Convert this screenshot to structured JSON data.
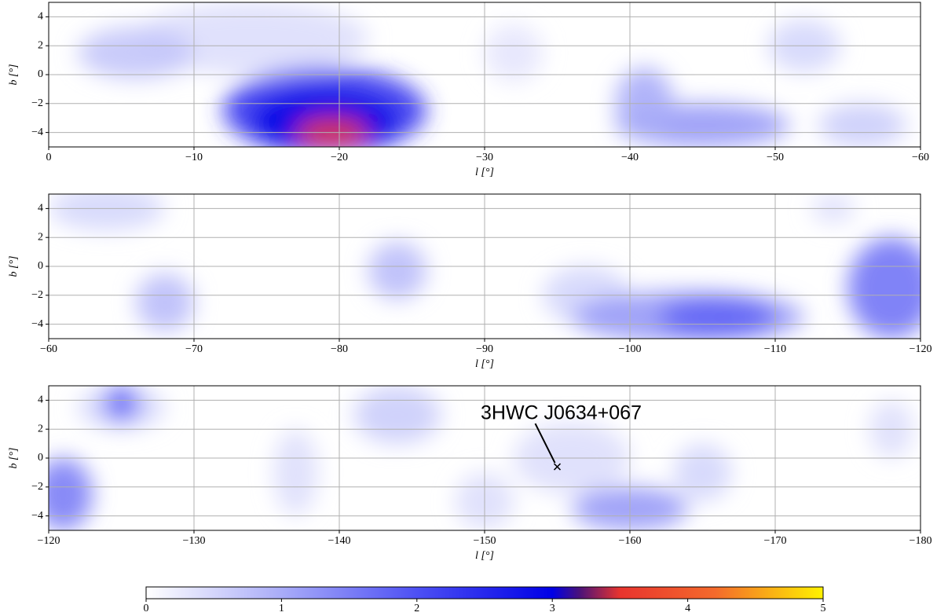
{
  "chart_data": [
    {
      "type": "heatmap",
      "xlabel": "l [°]",
      "ylabel": "b [°]",
      "xlim": [
        0,
        -60
      ],
      "ylim": [
        -5,
        5
      ],
      "xticks": [
        0,
        {
          "value": -10,
          "label": "−10"
        },
        {
          "value": -20,
          "label": "−20"
        },
        {
          "value": -30,
          "label": "−30"
        },
        {
          "value": -40,
          "label": "−40"
        },
        {
          "value": -50,
          "label": "−50"
        },
        {
          "value": -60,
          "label": "−60"
        }
      ],
      "yticks": [
        {
          "value": -4,
          "label": "−4"
        },
        {
          "value": -2,
          "label": "−2"
        },
        0,
        2,
        4
      ],
      "grid": true,
      "features": [
        {
          "l": -14,
          "b": 2.5,
          "sl": 8,
          "sb": 2.5,
          "value": 0.4
        },
        {
          "l": -6,
          "b": 1.5,
          "sl": 4,
          "sb": 1.8,
          "value": 0.7
        },
        {
          "l": -19,
          "b": -2.5,
          "sl": 7,
          "sb": 3,
          "value": 2.3
        },
        {
          "l": -19,
          "b": -3.2,
          "sl": 5,
          "sb": 2,
          "value": 3
        },
        {
          "l": -19.5,
          "b": -4,
          "sl": 2.5,
          "sb": 1,
          "value": 3.6
        },
        {
          "l": -32,
          "b": 1.5,
          "sl": 2,
          "sb": 2,
          "value": 0.3
        },
        {
          "l": -45,
          "b": -3.5,
          "sl": 6,
          "sb": 1.5,
          "value": 1.2
        },
        {
          "l": -41,
          "b": -2,
          "sl": 2,
          "sb": 2.5,
          "value": 1
        },
        {
          "l": -52,
          "b": 2,
          "sl": 2.5,
          "sb": 1.8,
          "value": 0.5
        },
        {
          "l": -56,
          "b": -3.5,
          "sl": 3,
          "sb": 1.5,
          "value": 0.6
        }
      ]
    },
    {
      "type": "heatmap",
      "xlabel": "l [°]",
      "ylabel": "b [°]",
      "xlim": [
        -60,
        -120
      ],
      "ylim": [
        -5,
        5
      ],
      "xticks": [
        {
          "value": -60,
          "label": "−60"
        },
        {
          "value": -70,
          "label": "−70"
        },
        {
          "value": -80,
          "label": "−80"
        },
        {
          "value": -90,
          "label": "−90"
        },
        {
          "value": -100,
          "label": "−100"
        },
        {
          "value": -110,
          "label": "−110"
        },
        {
          "value": -120,
          "label": "−120"
        }
      ],
      "yticks": [
        {
          "value": -4,
          "label": "−4"
        },
        {
          "value": -2,
          "label": "−2"
        },
        0,
        2,
        4
      ],
      "grid": true,
      "features": [
        {
          "l": -64,
          "b": 4,
          "sl": 4,
          "sb": 1.5,
          "value": 0.5
        },
        {
          "l": -68,
          "b": -2.5,
          "sl": 2,
          "sb": 2,
          "value": 0.8
        },
        {
          "l": -84,
          "b": -0.3,
          "sl": 2,
          "sb": 2,
          "value": 0.8
        },
        {
          "l": -97,
          "b": -2,
          "sl": 3,
          "sb": 2,
          "value": 0.5
        },
        {
          "l": -104,
          "b": -3.5,
          "sl": 8,
          "sb": 1.8,
          "value": 1.2
        },
        {
          "l": -106,
          "b": -3.5,
          "sl": 4,
          "sb": 1.3,
          "value": 1.8
        },
        {
          "l": -118,
          "b": -1.5,
          "sl": 3,
          "sb": 3.5,
          "value": 1.6
        },
        {
          "l": -114,
          "b": 4,
          "sl": 1.5,
          "sb": 1,
          "value": 0.4
        }
      ]
    },
    {
      "type": "heatmap",
      "xlabel": "l [°]",
      "ylabel": "b [°]",
      "xlim": [
        -120,
        -180
      ],
      "ylim": [
        -5,
        5
      ],
      "xticks": [
        {
          "value": -120,
          "label": "−120"
        },
        {
          "value": -130,
          "label": "−130"
        },
        {
          "value": -140,
          "label": "−140"
        },
        {
          "value": -150,
          "label": "−150"
        },
        {
          "value": -160,
          "label": "−160"
        },
        {
          "value": -170,
          "label": "−170"
        },
        {
          "value": -180,
          "label": "−180"
        }
      ],
      "yticks": [
        {
          "value": -4,
          "label": "−4"
        },
        {
          "value": -2,
          "label": "−2"
        },
        0,
        2,
        4
      ],
      "grid": true,
      "features": [
        {
          "l": -121,
          "b": -2.5,
          "sl": 2,
          "sb": 2.5,
          "value": 1.5
        },
        {
          "l": -125,
          "b": 3.5,
          "sl": 3,
          "sb": 1.5,
          "value": 0.5
        },
        {
          "l": -125,
          "b": 3.8,
          "sl": 1.2,
          "sb": 1.2,
          "value": 1.8
        },
        {
          "l": -137,
          "b": -1,
          "sl": 1.5,
          "sb": 3,
          "value": 0.4
        },
        {
          "l": -144,
          "b": 3,
          "sl": 3,
          "sb": 2,
          "value": 0.6
        },
        {
          "l": -150,
          "b": -3,
          "sl": 2,
          "sb": 2,
          "value": 0.4
        },
        {
          "l": -156,
          "b": 0,
          "sl": 4,
          "sb": 2.5,
          "value": 0.4
        },
        {
          "l": -160,
          "b": -3.5,
          "sl": 4,
          "sb": 1.5,
          "value": 1.2
        },
        {
          "l": -165,
          "b": -1,
          "sl": 2,
          "sb": 2,
          "value": 0.5
        },
        {
          "l": -178,
          "b": 2,
          "sl": 1.5,
          "sb": 2,
          "value": 0.4
        }
      ],
      "annotation": {
        "text": "3HWC J0634+067",
        "l": -155,
        "b": -0.6
      }
    }
  ],
  "colorbar": {
    "lim": [
      0,
      5
    ],
    "ticks": [
      0,
      1,
      2,
      3,
      4,
      5
    ],
    "colormap": [
      {
        "value": 0,
        "color": "#ffffff"
      },
      {
        "value": 1,
        "color": "#a9acf8"
      },
      {
        "value": 2,
        "color": "#4d50f4"
      },
      {
        "value": 3,
        "color": "#0000e6"
      },
      {
        "value": 3.2,
        "color": "#4a127a"
      },
      {
        "value": 3.5,
        "color": "#e8342e"
      },
      {
        "value": 4.2,
        "color": "#f46a2c"
      },
      {
        "value": 5,
        "color": "#fff200"
      }
    ]
  }
}
